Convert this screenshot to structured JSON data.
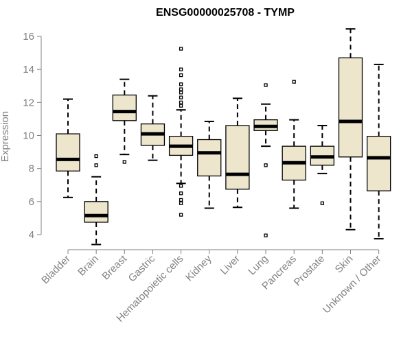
{
  "chart_data": {
    "type": "boxplot",
    "title": "ENSG00000025708 - TYMP",
    "xlabel": "",
    "ylabel": "Expression",
    "ylim": [
      3.4,
      16.6
    ],
    "yticks": [
      4,
      6,
      8,
      10,
      12,
      14,
      16
    ],
    "colors": {
      "box_fill": "#ede6cd",
      "box_stroke": "#000000",
      "axis": "#808080"
    },
    "categories": [
      "Bladder",
      "Brain",
      "Breast",
      "Gastric",
      "Hematopoietic cells",
      "Kidney",
      "Liver",
      "Lung",
      "Pancreas",
      "Prostate",
      "Skin",
      "Unknown / Other"
    ],
    "boxes": [
      {
        "label": "Bladder",
        "q1": 7.85,
        "median": 8.55,
        "q3": 10.1,
        "whisker_low": 6.25,
        "whisker_high": 12.2,
        "outliers": []
      },
      {
        "label": "Brain",
        "q1": 4.75,
        "median": 5.15,
        "q3": 6.0,
        "whisker_low": 3.4,
        "whisker_high": 7.5,
        "outliers": [
          8.2,
          8.75
        ]
      },
      {
        "label": "Breast",
        "q1": 10.9,
        "median": 11.45,
        "q3": 12.45,
        "whisker_low": 8.85,
        "whisker_high": 13.4,
        "outliers": [
          8.4
        ]
      },
      {
        "label": "Gastric",
        "q1": 9.4,
        "median": 10.1,
        "q3": 10.7,
        "whisker_low": 8.5,
        "whisker_high": 12.4,
        "outliers": []
      },
      {
        "label": "Hematopoietic cells",
        "q1": 8.8,
        "median": 9.35,
        "q3": 9.95,
        "whisker_low": 7.1,
        "whisker_high": 11.55,
        "outliers": [
          15.25,
          14.0,
          13.65,
          13.1,
          12.8,
          12.6,
          12.3,
          12.0,
          11.8,
          6.95,
          6.5,
          6.1,
          5.9,
          5.2
        ]
      },
      {
        "label": "Kidney",
        "q1": 7.55,
        "median": 8.95,
        "q3": 9.75,
        "whisker_low": 5.6,
        "whisker_high": 10.85,
        "outliers": []
      },
      {
        "label": "Liver",
        "q1": 6.75,
        "median": 7.65,
        "q3": 10.6,
        "whisker_low": 5.65,
        "whisker_high": 12.25,
        "outliers": []
      },
      {
        "label": "Lung",
        "q1": 10.3,
        "median": 10.55,
        "q3": 10.95,
        "whisker_low": 9.35,
        "whisker_high": 11.9,
        "outliers": [
          13.05,
          8.2,
          3.95
        ]
      },
      {
        "label": "Pancreas",
        "q1": 7.3,
        "median": 8.35,
        "q3": 9.35,
        "whisker_low": 5.6,
        "whisker_high": 10.95,
        "outliers": [
          13.25
        ]
      },
      {
        "label": "Prostate",
        "q1": 8.2,
        "median": 8.7,
        "q3": 9.35,
        "whisker_low": 7.7,
        "whisker_high": 10.6,
        "outliers": [
          5.9
        ]
      },
      {
        "label": "Skin",
        "q1": 8.7,
        "median": 10.85,
        "q3": 14.7,
        "whisker_low": 4.3,
        "whisker_high": 16.45,
        "outliers": []
      },
      {
        "label": "Unknown / Other",
        "q1": 6.65,
        "median": 8.65,
        "q3": 9.95,
        "whisker_low": 3.75,
        "whisker_high": 14.3,
        "outliers": []
      }
    ]
  }
}
